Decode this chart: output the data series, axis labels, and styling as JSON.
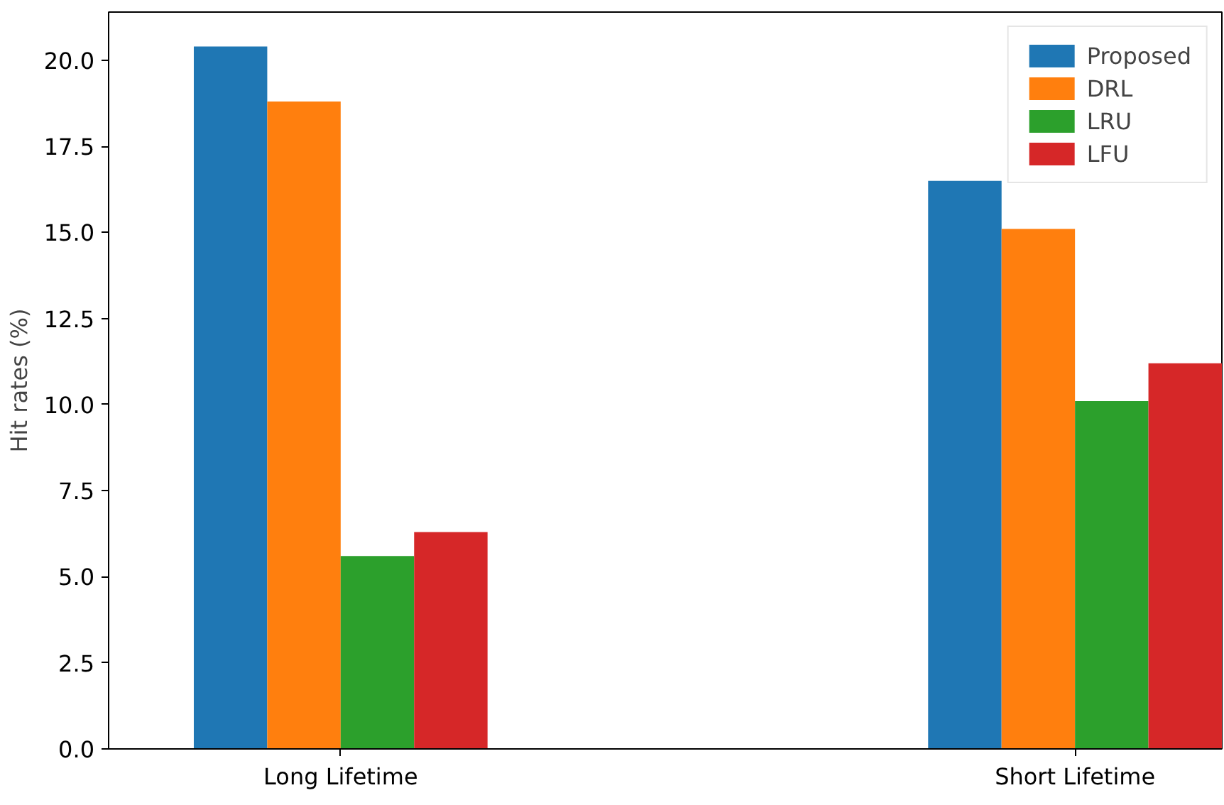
{
  "chart_data": {
    "type": "bar",
    "ylabel": "Hit rates (%)",
    "categories": [
      "Long Lifetime",
      "Short Lifetime"
    ],
    "series": [
      {
        "name": "Proposed",
        "color": "#1f77b4",
        "values": [
          20.4,
          16.5
        ]
      },
      {
        "name": "DRL",
        "color": "#ff7f0e",
        "values": [
          18.8,
          15.1
        ]
      },
      {
        "name": "LRU",
        "color": "#2ca02c",
        "values": [
          5.6,
          10.1
        ]
      },
      {
        "name": "LFU",
        "color": "#d62728",
        "values": [
          6.3,
          11.2
        ]
      }
    ],
    "ylim": [
      0,
      21.4
    ],
    "yticks": [
      {
        "value": 0,
        "label": "0.0"
      },
      {
        "value": 2.5,
        "label": "2.5"
      },
      {
        "value": 5,
        "label": "5.0"
      },
      {
        "value": 7.5,
        "label": "7.5"
      },
      {
        "value": 10,
        "label": "10.0"
      },
      {
        "value": 12.5,
        "label": "12.5"
      },
      {
        "value": 15,
        "label": "15.0"
      },
      {
        "value": 17.5,
        "label": "17.5"
      },
      {
        "value": 20,
        "label": "20.0"
      }
    ],
    "grid": false,
    "legend": "top right"
  }
}
